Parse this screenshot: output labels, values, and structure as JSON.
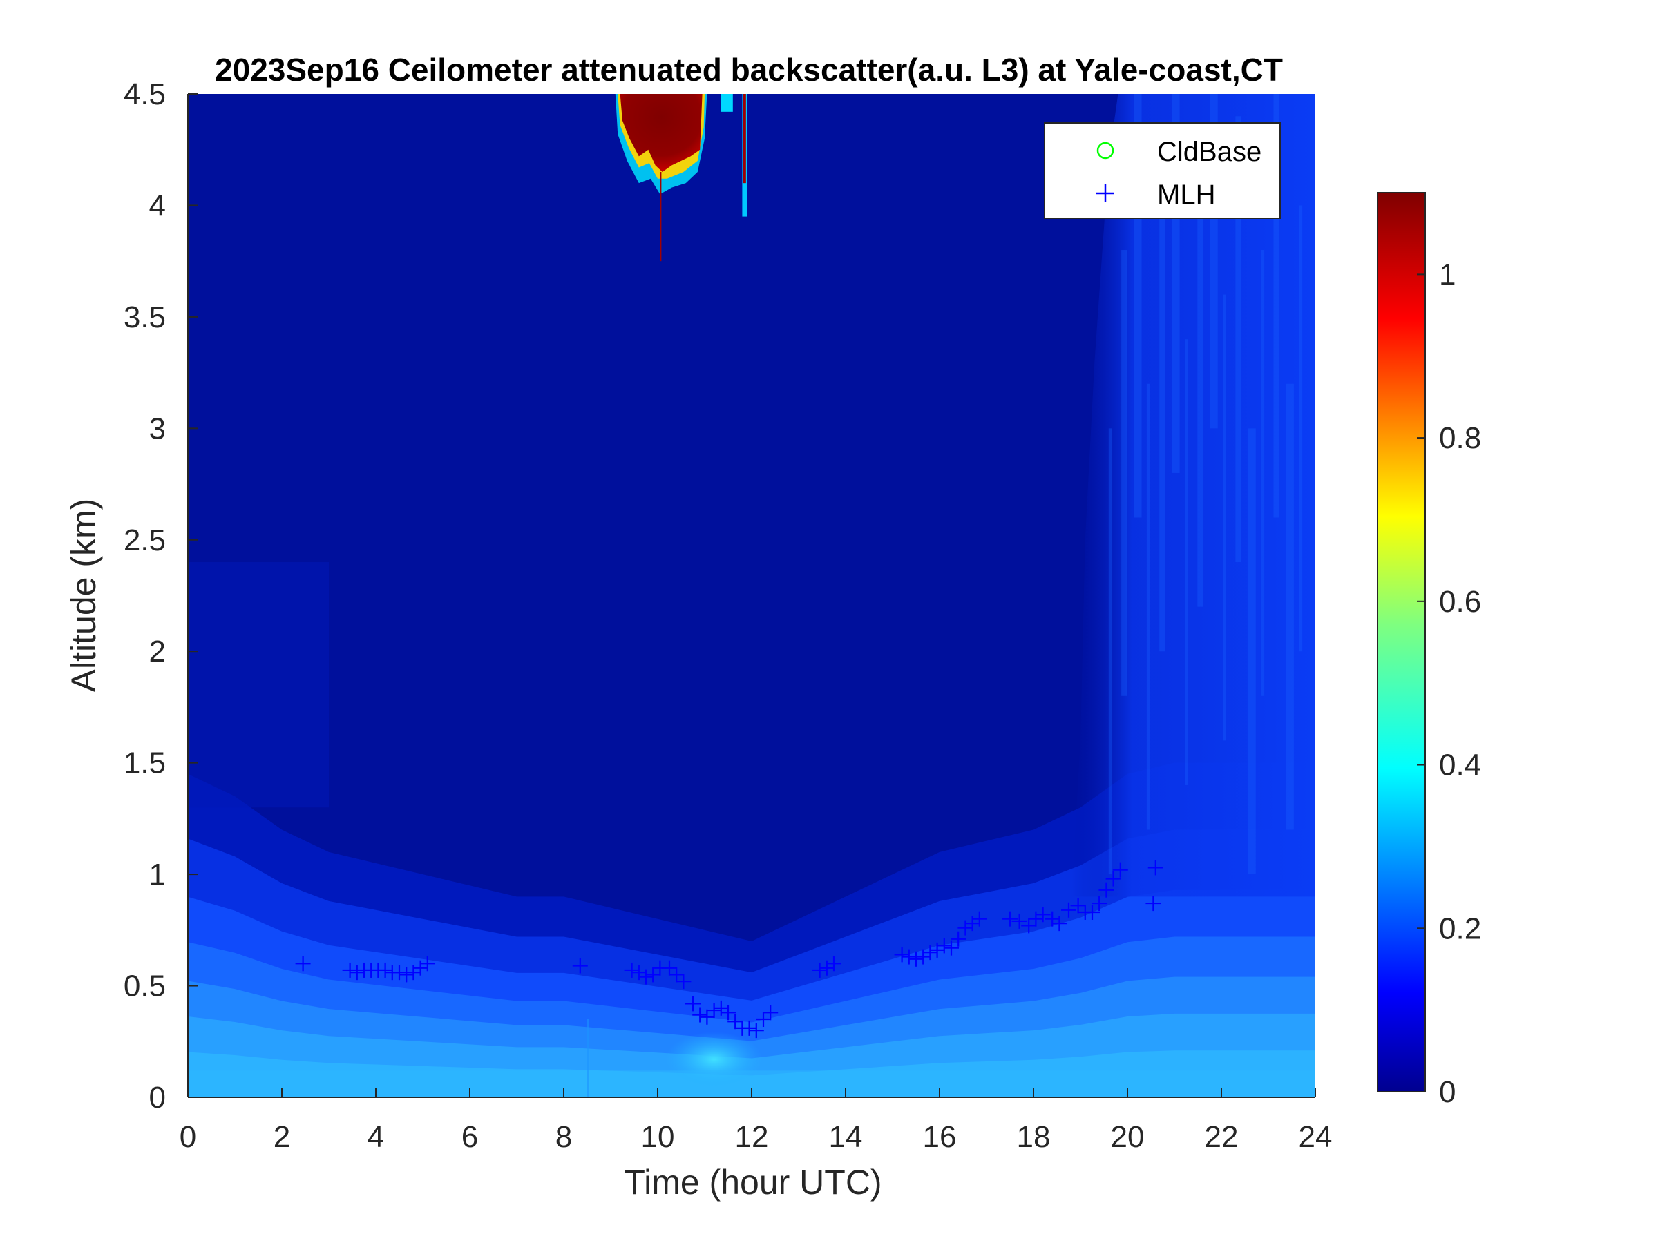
{
  "figure": {
    "title": "2023Sep16 Ceilometer attenuated backscatter(a.u. L3) at Yale-coast,CT"
  },
  "chart_data": {
    "type": "heatmap",
    "title": "2023Sep16 Ceilometer attenuated backscatter(a.u. L3) at Yale-coast,CT",
    "xlabel": "Time (hour UTC)",
    "ylabel": "Altitude (km)",
    "xlim": [
      0,
      24
    ],
    "ylim": [
      0,
      4.5
    ],
    "xticks": [
      0,
      2,
      4,
      6,
      8,
      10,
      12,
      14,
      16,
      18,
      20,
      22,
      24
    ],
    "xtick_labels": [
      "0",
      "2",
      "4",
      "6",
      "8",
      "10",
      "12",
      "14",
      "16",
      "18",
      "20",
      "22",
      "24"
    ],
    "yticks": [
      0,
      0.5,
      1,
      1.5,
      2,
      2.5,
      3,
      3.5,
      4,
      4.5
    ],
    "ytick_labels": [
      "0",
      "0.5",
      "1",
      "1.5",
      "2",
      "2.5",
      "3",
      "3.5",
      "4",
      "4.5"
    ],
    "colormap": "jet",
    "colorbar": {
      "range": [
        0,
        1.1
      ],
      "ticks": [
        0,
        0.2,
        0.4,
        0.6,
        0.8,
        1
      ],
      "tick_labels": [
        "0",
        "0.2",
        "0.4",
        "0.6",
        "0.8",
        "1"
      ]
    },
    "legend": {
      "placement": "top-right",
      "entries": [
        {
          "label": "CldBase",
          "marker": "circle",
          "color": "#00ff00"
        },
        {
          "label": "MLH",
          "marker": "plus",
          "color": "#0000ff"
        }
      ]
    },
    "series": [
      {
        "name": "MLH",
        "marker": "plus",
        "color": "#0000ff",
        "points": [
          [
            2.45,
            0.6
          ],
          [
            3.45,
            0.57
          ],
          [
            3.6,
            0.56
          ],
          [
            3.75,
            0.57
          ],
          [
            3.9,
            0.57
          ],
          [
            4.05,
            0.57
          ],
          [
            4.2,
            0.57
          ],
          [
            4.35,
            0.56
          ],
          [
            4.5,
            0.56
          ],
          [
            4.65,
            0.55
          ],
          [
            4.8,
            0.56
          ],
          [
            4.95,
            0.58
          ],
          [
            5.1,
            0.6
          ],
          [
            8.35,
            0.59
          ],
          [
            9.45,
            0.57
          ],
          [
            9.6,
            0.56
          ],
          [
            9.75,
            0.54
          ],
          [
            9.9,
            0.55
          ],
          [
            10.05,
            0.58
          ],
          [
            10.25,
            0.58
          ],
          [
            10.4,
            0.55
          ],
          [
            10.55,
            0.52
          ],
          [
            10.75,
            0.42
          ],
          [
            10.9,
            0.37
          ],
          [
            11.05,
            0.36
          ],
          [
            11.2,
            0.39
          ],
          [
            11.35,
            0.4
          ],
          [
            11.5,
            0.38
          ],
          [
            11.65,
            0.34
          ],
          [
            11.8,
            0.31
          ],
          [
            11.95,
            0.31
          ],
          [
            12.1,
            0.3
          ],
          [
            12.25,
            0.35
          ],
          [
            12.4,
            0.38
          ],
          [
            13.45,
            0.57
          ],
          [
            13.6,
            0.58
          ],
          [
            13.75,
            0.6
          ],
          [
            15.2,
            0.64
          ],
          [
            15.35,
            0.63
          ],
          [
            15.5,
            0.62
          ],
          [
            15.65,
            0.63
          ],
          [
            15.8,
            0.65
          ],
          [
            15.95,
            0.66
          ],
          [
            16.1,
            0.68
          ],
          [
            16.25,
            0.67
          ],
          [
            16.4,
            0.71
          ],
          [
            16.55,
            0.76
          ],
          [
            16.7,
            0.78
          ],
          [
            16.85,
            0.8
          ],
          [
            17.5,
            0.8
          ],
          [
            17.7,
            0.79
          ],
          [
            17.9,
            0.77
          ],
          [
            18.05,
            0.8
          ],
          [
            18.2,
            0.82
          ],
          [
            18.4,
            0.8
          ],
          [
            18.55,
            0.78
          ],
          [
            18.75,
            0.84
          ],
          [
            18.95,
            0.86
          ],
          [
            19.1,
            0.83
          ],
          [
            19.25,
            0.83
          ],
          [
            19.4,
            0.87
          ],
          [
            19.55,
            0.93
          ],
          [
            19.7,
            0.98
          ],
          [
            19.85,
            1.02
          ],
          [
            20.55,
            0.87
          ],
          [
            20.6,
            1.03
          ]
        ]
      },
      {
        "name": "CldBase",
        "marker": "circle",
        "color": "#00ff00",
        "points": []
      }
    ]
  }
}
